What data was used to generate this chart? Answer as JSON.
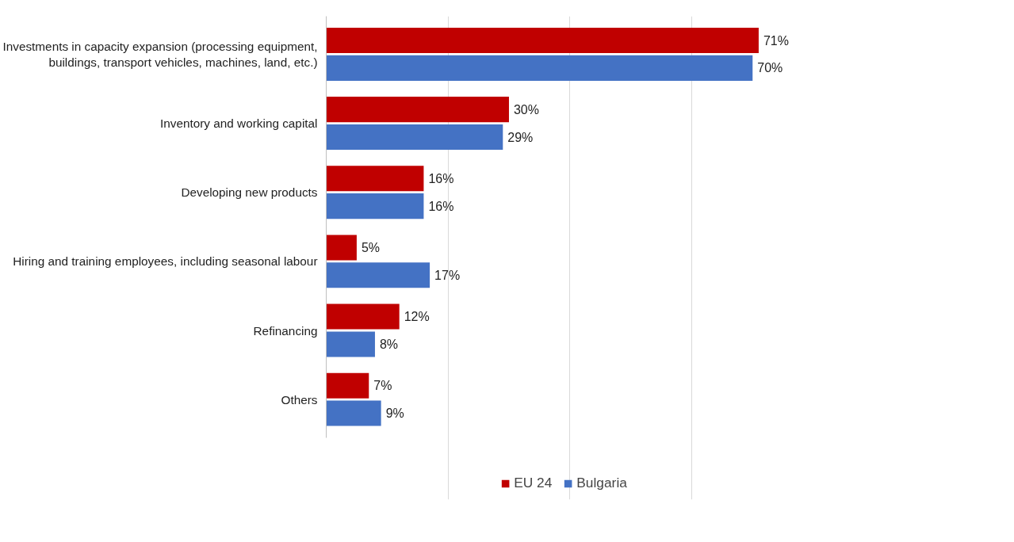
{
  "chart_data": {
    "type": "bar",
    "orientation": "horizontal",
    "categories": [
      "Investments in capacity expansion (processing equipment, buildings, transport vehicles, machines, land, etc.)",
      "Inventory and working capital",
      "Developing new products",
      "Hiring and training employees, including seasonal labour",
      "Refinancing",
      "Others"
    ],
    "series": [
      {
        "name": "EU 24",
        "color": "#c00000",
        "values": [
          71,
          30,
          16,
          5,
          12,
          7
        ],
        "value_labels": [
          "71%",
          "30%",
          "16%",
          "5%",
          "12%",
          "7%"
        ]
      },
      {
        "name": "Bulgaria",
        "color": "#4472c4",
        "values": [
          70,
          29,
          16,
          17,
          8,
          9
        ],
        "value_labels": [
          "70%",
          "29%",
          "16%",
          "17%",
          "8%",
          "9%"
        ]
      }
    ],
    "xticks": [
      {
        "value": 0,
        "label": null
      },
      {
        "value": 20,
        "label": null
      },
      {
        "value": 40,
        "label": null
      },
      {
        "value": 60,
        "label": null
      }
    ],
    "tick_labels": "y",
    "grid": "x",
    "legend": "bottom"
  }
}
